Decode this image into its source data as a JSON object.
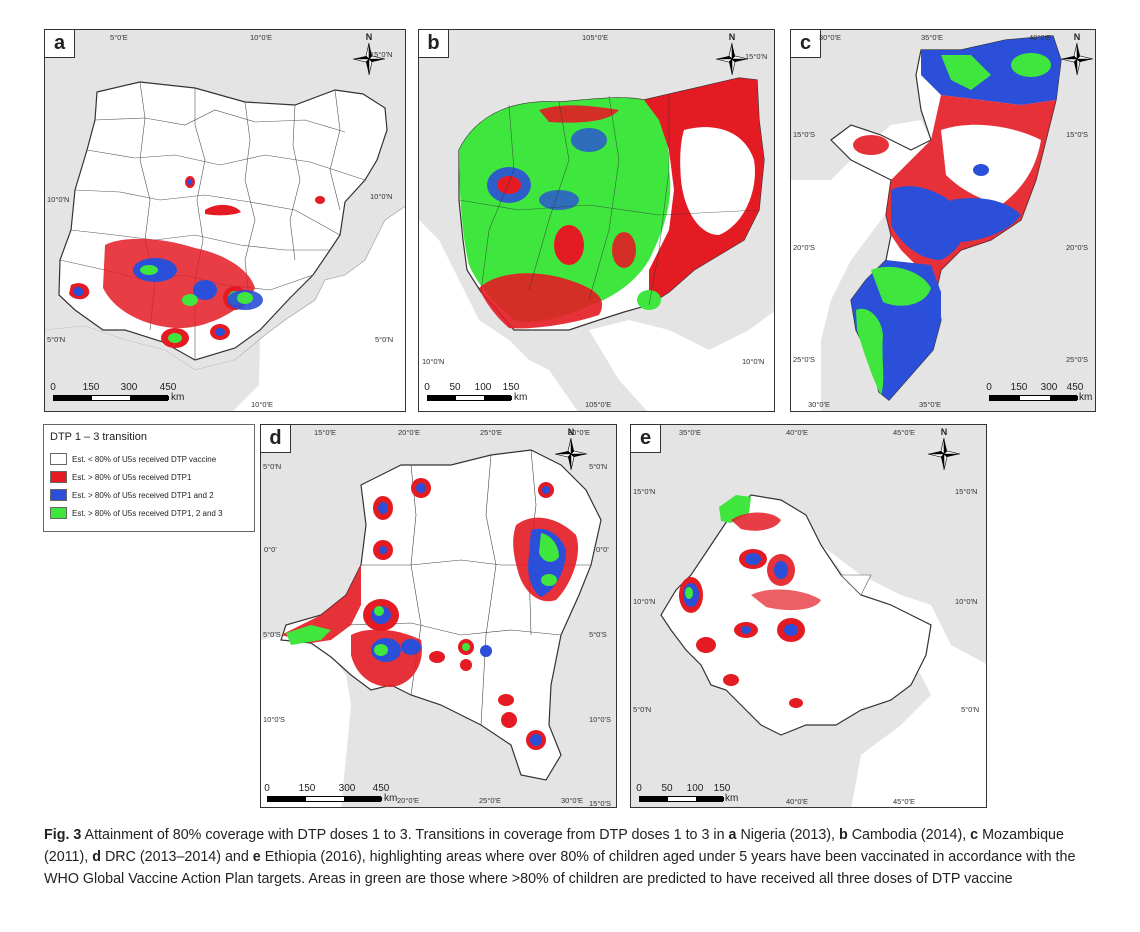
{
  "figure": {
    "panels": {
      "a": {
        "label": "a",
        "top_coords": [
          "5°0'E",
          "10°0'E",
          "15°0'N"
        ],
        "left_coords": [
          "10°0'N",
          "5°0'N"
        ],
        "right_coords": [
          "10°0'N",
          "5°0'N"
        ],
        "bottom_coords": [
          "10°0'E"
        ],
        "north": "N",
        "scale": {
          "ticks": [
            "0",
            "150",
            "300",
            "450"
          ],
          "unit": "km"
        }
      },
      "b": {
        "label": "b",
        "top_coords": [
          "105°0'E",
          "15°0'N"
        ],
        "left_coords": [
          "10°0'N"
        ],
        "right_coords": [
          "10°0'N"
        ],
        "bottom_coords": [
          "105°0'E"
        ],
        "north": "N",
        "scale": {
          "ticks": [
            "0",
            "50",
            "100",
            "150"
          ],
          "unit": "km"
        }
      },
      "c": {
        "label": "c",
        "top_coords": [
          "30°0'E",
          "35°0'E",
          "40°0'E"
        ],
        "left_coords": [
          "15°0'S",
          "20°0'S",
          "25°0'S"
        ],
        "right_coords": [
          "15°0'S",
          "20°0'S",
          "25°0'S"
        ],
        "bottom_coords": [
          "30°0'E",
          "35°0'E"
        ],
        "north": "N",
        "scale": {
          "ticks": [
            "0",
            "150",
            "300",
            "450"
          ],
          "unit": "km"
        }
      },
      "d": {
        "label": "d",
        "top_coords": [
          "15°0'E",
          "20°0'E",
          "25°0'E",
          "30°0'E"
        ],
        "left_coords": [
          "5°0'N",
          "0°0'",
          "5°0'S",
          "10°0'S"
        ],
        "right_coords": [
          "5°0'N",
          "0°0'",
          "5°0'S",
          "10°0'S"
        ],
        "bottom_coords": [
          "20°0'E",
          "25°0'E",
          "30°0'E",
          "15°0'S"
        ],
        "north": "N",
        "scale": {
          "ticks": [
            "0",
            "150",
            "300",
            "450"
          ],
          "unit": "km"
        }
      },
      "e": {
        "label": "e",
        "top_coords": [
          "35°0'E",
          "40°0'E",
          "45°0'E"
        ],
        "left_coords": [
          "15°0'N",
          "10°0'N",
          "5°0'N"
        ],
        "right_coords": [
          "15°0'N",
          "10°0'N",
          "5°0'N"
        ],
        "bottom_coords": [
          "40°0'E",
          "45°0'E"
        ],
        "north": "N",
        "scale": {
          "ticks": [
            "0",
            "50",
            "100",
            "150"
          ],
          "unit": "km"
        }
      }
    },
    "legend": {
      "title": "DTP 1 – 3 transition",
      "items": [
        {
          "label": "Est. < 80% of U5s received DTP vaccine",
          "color": "#ffffff"
        },
        {
          "label": "Est. > 80% of U5s received DTP1",
          "color": "#e41b23"
        },
        {
          "label": "Est. > 80% of U5s received DTP1 and 2",
          "color": "#2b4fd8"
        },
        {
          "label": "Est. > 80% of U5s received DTP1, 2 and 3",
          "color": "#3ee63e"
        }
      ]
    },
    "caption": {
      "prefix": "Fig. 3",
      "title": "Attainment of 80% coverage with DTP doses 1 to 3.",
      "t1": "Transitions in coverage from DTP doses 1 to 3 in",
      "a": "a",
      "t2": "Nigeria (2013),",
      "b": "b",
      "t3": "Cambodia (2014),",
      "c": "c",
      "t4": "Mozambique (2011),",
      "d": "d",
      "t5": "DRC (2013–2014) and",
      "e": "e",
      "t6": "Ethiopia (2016), highlighting areas where over 80% of children aged under 5 years have been vaccinated in accordance with the WHO Global Vaccine Action Plan targets. Areas in green are those where >80% of children are predicted to have received all three doses of DTP vaccine"
    },
    "colors": {
      "land": "#ffffff",
      "background": "#e4e4e4",
      "sea": "#ffffff",
      "dtp1": "#e41b23",
      "dtp2": "#2b4fd8",
      "dtp3": "#3ee63e",
      "border": "#333333"
    }
  }
}
